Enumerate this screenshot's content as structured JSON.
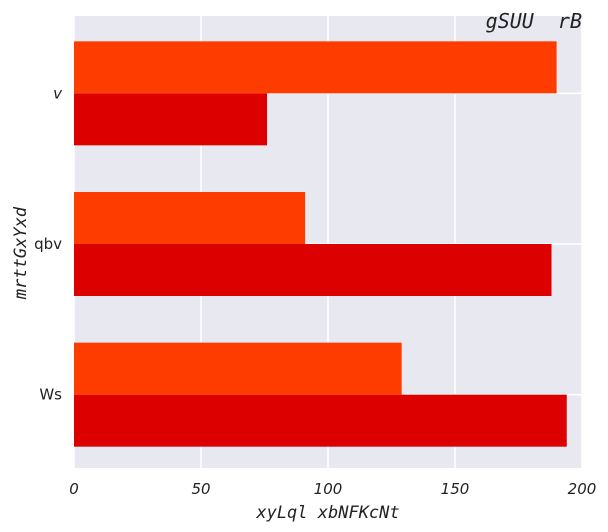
{
  "chart_data": {
    "type": "bar",
    "orientation": "horizontal",
    "title": "gSUU  rB",
    "xlabel": "xyLql xbNFKcNt",
    "ylabel": "mrttGxYxd",
    "categories": [
      "v",
      "qbv",
      "Ws"
    ],
    "series": [
      {
        "color": "#ff3c00",
        "values": [
          190,
          91,
          129
        ]
      },
      {
        "color": "#dc0000",
        "values": [
          76,
          188,
          194
        ]
      }
    ],
    "xlim": [
      0,
      200
    ],
    "xticks": [
      0,
      50,
      100,
      150,
      200
    ],
    "grid": true
  }
}
